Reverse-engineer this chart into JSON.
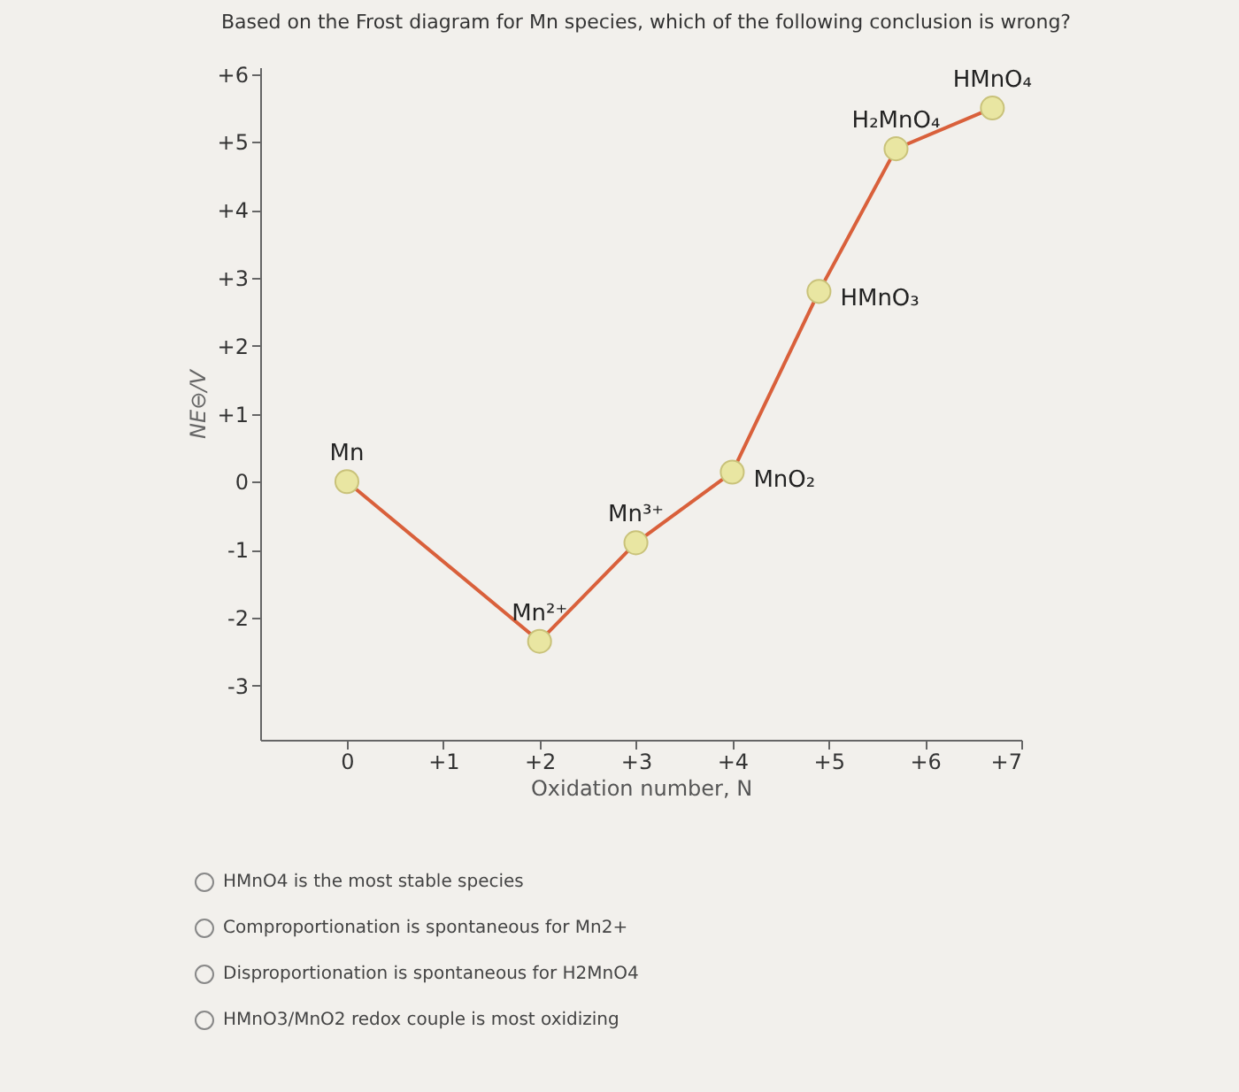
{
  "chart_data": {
    "type": "line",
    "title": "Based on the Frost diagram for Mn species, which of the following conclusion is wrong?",
    "xlabel": "Oxidation number, N",
    "ylabel": "NE⊖/V",
    "x": [
      0,
      2,
      3,
      4,
      4.9,
      5.7,
      6.7
    ],
    "series": [
      {
        "color": "#d9603b",
        "values": [
          0,
          -2.35,
          -0.9,
          0.14,
          2.8,
          4.9,
          5.5
        ]
      }
    ],
    "marker": "circle",
    "grid": false,
    "xlim": [
      -0.9,
      7
    ],
    "xticks": [
      0,
      {
        "value": 1,
        "label": "+1"
      },
      {
        "value": 2,
        "label": "+2"
      },
      {
        "value": 3,
        "label": "+3"
      },
      {
        "value": 4,
        "label": "+4"
      },
      {
        "value": 5,
        "label": "+5"
      },
      {
        "value": 6,
        "label": "+6"
      },
      {
        "value": 7,
        "label": "+7"
      }
    ],
    "ylim": [
      -3.8,
      6.1
    ],
    "yticks": [
      {
        "value": 6,
        "label": "+6"
      },
      {
        "value": 5,
        "label": "+5"
      },
      {
        "value": 4,
        "label": "+4"
      },
      {
        "value": 3,
        "label": "+3"
      },
      {
        "value": 2,
        "label": "+2"
      },
      {
        "value": 1,
        "label": "+1"
      },
      0,
      -1,
      -2,
      -3
    ],
    "annotations": [
      {
        "text": "Mn",
        "x": 0,
        "y": 0
      },
      {
        "text": "Mn²⁺",
        "x": 2,
        "y": -2.35
      },
      {
        "text": "Mn³⁺",
        "x": 3,
        "y": -0.9
      },
      {
        "text": "MnO₂",
        "x": 4,
        "y": 0.14
      },
      {
        "text": "HMnO₃",
        "x": 4.9,
        "y": 2.8
      },
      {
        "text": "H₂MnO₄",
        "x": 5.7,
        "y": 4.9
      },
      {
        "text": "HMnO₄",
        "x": 6.7,
        "y": 5.5
      },
      "HMnO4 is the most stable species",
      "Comproportionation is spontaneous for Mn2+",
      "Disproportionation is spontaneous for H2MnO4",
      "HMnO3/MnO2 redox couple is most oxidizing"
    ]
  }
}
